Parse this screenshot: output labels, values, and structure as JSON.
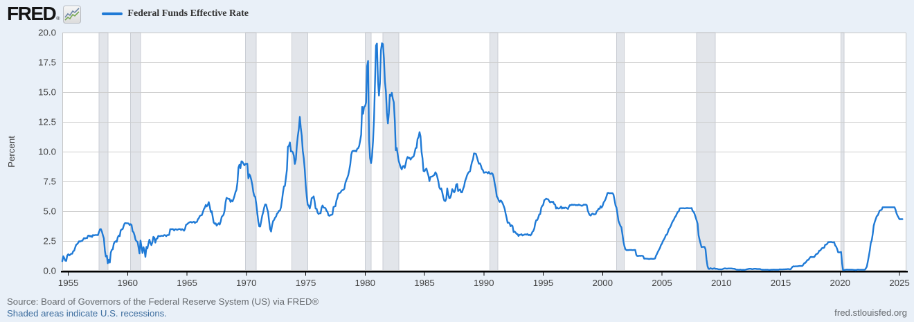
{
  "header": {
    "logo": "FRED",
    "registered": "®"
  },
  "legend": {
    "label": "Federal Funds Effective Rate"
  },
  "footer": {
    "source": "Source: Board of Governors of the Federal Reserve System (US) via FRED®",
    "recessions_note": "Shaded areas indicate U.S. recessions.",
    "site": "fred.stlouisfed.org"
  },
  "chart_data": {
    "type": "line",
    "title": "Federal Funds Effective Rate",
    "series_name": "Federal Funds Effective Rate",
    "xlabel": "",
    "ylabel": "Percent",
    "units": "Percent",
    "grid": true,
    "legend_position": "top-left",
    "xlim": [
      1954.5,
      2025.583
    ],
    "ylim": [
      0,
      20
    ],
    "y_ticks": [
      0,
      2.5,
      5,
      7.5,
      10,
      12.5,
      15,
      17.5,
      20
    ],
    "y_tick_labels": [
      "0.0",
      "2.5",
      "5.0",
      "7.5",
      "10.0",
      "12.5",
      "15.0",
      "17.5",
      "20.0"
    ],
    "x_ticks": [
      1955,
      1960,
      1965,
      1970,
      1975,
      1980,
      1985,
      1990,
      1995,
      2000,
      2005,
      2010,
      2015,
      2020,
      2025
    ],
    "x_tick_labels": [
      "1955",
      "1960",
      "1965",
      "1970",
      "1975",
      "1980",
      "1985",
      "1990",
      "1995",
      "2000",
      "2005",
      "2010",
      "2015",
      "2020",
      "2025"
    ],
    "line_color": "#1f7ad6",
    "colors": {
      "background": "#e9f0f8",
      "plot_background": "#ffffff",
      "grid": "#cdcdcd",
      "plot_border": "#c6c6c6",
      "axis": "#000000",
      "recession_fill": "#e2e5ea",
      "recession_edge": "#c9cdd4"
    },
    "recessions": [
      [
        1957.583,
        1958.333
      ],
      [
        1960.25,
        1961.083
      ],
      [
        1969.917,
        1970.833
      ],
      [
        1973.833,
        1975.167
      ],
      [
        1980.0,
        1980.5
      ],
      [
        1981.5,
        1982.833
      ],
      [
        1990.5,
        1991.167
      ],
      [
        2001.167,
        2001.833
      ],
      [
        2007.917,
        2009.5
      ],
      [
        2020.083,
        2020.333
      ]
    ],
    "frequency": "monthly",
    "x_start": {
      "year": 1954,
      "month": 7
    },
    "values": [
      0.8,
      1.22,
      1.06,
      0.85,
      0.83,
      1.28,
      1.39,
      1.29,
      1.35,
      1.43,
      1.43,
      1.64,
      1.68,
      1.96,
      2.18,
      2.24,
      2.35,
      2.48,
      2.45,
      2.5,
      2.5,
      2.62,
      2.75,
      2.71,
      2.75,
      2.73,
      2.95,
      2.96,
      2.88,
      2.94,
      2.84,
      3.0,
      2.96,
      3.0,
      3.0,
      3.0,
      2.99,
      3.24,
      3.47,
      3.5,
      3.28,
      2.98,
      2.72,
      1.67,
      1.2,
      1.26,
      0.63,
      0.93,
      0.68,
      1.53,
      1.76,
      1.8,
      2.27,
      2.42,
      2.48,
      2.43,
      2.8,
      2.96,
      2.9,
      3.39,
      3.47,
      3.5,
      3.76,
      3.98,
      4.0,
      3.99,
      3.99,
      3.97,
      3.84,
      3.92,
      3.85,
      3.32,
      3.23,
      2.98,
      2.6,
      2.47,
      2.44,
      1.98,
      1.45,
      2.54,
      2.02,
      1.49,
      1.98,
      1.73,
      1.17,
      2.0,
      1.88,
      2.26,
      2.61,
      2.33,
      2.15,
      2.37,
      2.85,
      2.78,
      2.36,
      2.68,
      2.71,
      2.93,
      2.9,
      2.9,
      2.94,
      2.93,
      2.92,
      3.0,
      2.98,
      2.9,
      3.0,
      2.99,
      3.02,
      3.49,
      3.48,
      3.5,
      3.48,
      3.38,
      3.48,
      3.48,
      3.43,
      3.47,
      3.5,
      3.5,
      3.42,
      3.5,
      3.45,
      3.36,
      3.52,
      3.85,
      3.9,
      3.98,
      4.04,
      4.09,
      4.1,
      4.04,
      4.09,
      4.12,
      4.01,
      4.08,
      4.1,
      4.32,
      4.42,
      4.6,
      4.65,
      4.67,
      4.9,
      5.17,
      5.3,
      5.53,
      5.4,
      5.53,
      5.76,
      5.4,
      4.94,
      5.0,
      4.53,
      4.05,
      3.94,
      3.98,
      3.79,
      3.9,
      3.99,
      3.88,
      4.13,
      4.51,
      4.61,
      4.71,
      5.05,
      5.76,
      6.12,
      6.07,
      6.03,
      6.03,
      5.78,
      5.91,
      5.82,
      6.02,
      6.3,
      6.61,
      6.79,
      7.41,
      8.67,
      8.9,
      8.61,
      9.19,
      9.15,
      9.0,
      8.85,
      8.97,
      8.98,
      8.98,
      7.76,
      8.1,
      7.95,
      7.61,
      7.21,
      6.62,
      6.29,
      6.2,
      5.6,
      4.9,
      4.14,
      3.72,
      3.71,
      4.15,
      4.63,
      4.91,
      5.31,
      5.57,
      5.55,
      5.2,
      4.91,
      4.14,
      3.5,
      3.29,
      3.83,
      4.17,
      4.27,
      4.46,
      4.55,
      4.8,
      4.87,
      5.04,
      5.06,
      5.33,
      5.94,
      6.58,
      7.09,
      7.12,
      7.84,
      8.49,
      10.4,
      10.5,
      10.78,
      10.01,
      10.03,
      9.95,
      9.65,
      8.97,
      9.35,
      10.51,
      11.31,
      11.93,
      12.92,
      12.01,
      11.34,
      10.06,
      9.45,
      8.53,
      7.13,
      6.24,
      5.54,
      5.49,
      5.22,
      5.55,
      6.1,
      6.14,
      6.24,
      5.82,
      5.22,
      5.2,
      4.87,
      4.77,
      4.84,
      4.82,
      5.29,
      5.48,
      5.31,
      5.29,
      5.25,
      5.03,
      4.95,
      4.65,
      4.61,
      4.68,
      4.69,
      4.73,
      5.35,
      5.39,
      5.42,
      5.9,
      6.14,
      6.47,
      6.51,
      6.56,
      6.7,
      6.78,
      6.79,
      6.89,
      7.36,
      7.6,
      7.81,
      8.04,
      8.45,
      8.96,
      9.76,
      10.03,
      10.07,
      10.06,
      10.09,
      10.01,
      10.24,
      10.29,
      10.47,
      10.94,
      11.43,
      13.77,
      13.18,
      13.78,
      13.82,
      14.13,
      17.19,
      17.61,
      10.98,
      9.47,
      9.03,
      9.61,
      10.87,
      12.81,
      15.85,
      18.9,
      19.08,
      15.93,
      14.7,
      15.72,
      18.52,
      19.1,
      19.04,
      17.82,
      15.87,
      15.08,
      13.31,
      12.37,
      13.22,
      14.78,
      14.68,
      14.94,
      14.45,
      14.15,
      12.59,
      10.12,
      10.31,
      9.71,
      9.2,
      8.95,
      8.68,
      8.51,
      8.77,
      8.8,
      8.63,
      8.98,
      9.37,
      9.56,
      9.45,
      9.48,
      9.34,
      9.47,
      9.56,
      9.59,
      9.91,
      10.29,
      10.32,
      11.06,
      11.23,
      11.64,
      11.3,
      9.99,
      9.43,
      8.38,
      8.35,
      8.5,
      8.58,
      8.27,
      7.97,
      7.53,
      7.88,
      7.9,
      7.92,
      7.99,
      8.05,
      8.27,
      8.14,
      7.86,
      7.48,
      6.99,
      6.85,
      6.92,
      6.56,
      6.17,
      5.89,
      5.85,
      6.04,
      6.91,
      6.43,
      6.1,
      6.13,
      6.37,
      6.85,
      6.73,
      6.58,
      6.73,
      7.22,
      7.29,
      6.69,
      6.77,
      6.83,
      6.58,
      6.58,
      6.87,
      7.09,
      7.51,
      7.75,
      8.01,
      8.19,
      8.3,
      8.35,
      8.76,
      9.12,
      9.36,
      9.85,
      9.84,
      9.81,
      9.53,
      9.24,
      8.99,
      9.02,
      8.84,
      8.55,
      8.45,
      8.23,
      8.24,
      8.28,
      8.26,
      8.18,
      8.29,
      8.15,
      8.13,
      8.2,
      8.11,
      7.81,
      7.31,
      6.91,
      6.25,
      6.12,
      5.91,
      5.78,
      5.9,
      5.82,
      5.66,
      5.45,
      5.21,
      4.81,
      4.43,
      4.03,
      4.06,
      3.98,
      3.73,
      3.82,
      3.76,
      3.25,
      3.3,
      3.22,
      3.1,
      3.09,
      2.92,
      3.02,
      3.03,
      3.07,
      2.96,
      3.0,
      3.04,
      3.06,
      3.03,
      3.09,
      2.99,
      3.02,
      2.96,
      3.05,
      3.25,
      3.34,
      3.56,
      4.01,
      4.25,
      4.26,
      4.47,
      4.73,
      4.76,
      5.29,
      5.45,
      5.53,
      5.92,
      5.98,
      6.05,
      6.01,
      6.0,
      5.85,
      5.74,
      5.8,
      5.76,
      5.8,
      5.6,
      5.56,
      5.22,
      5.31,
      5.22,
      5.24,
      5.27,
      5.4,
      5.22,
      5.3,
      5.24,
      5.31,
      5.29,
      5.25,
      5.19,
      5.39,
      5.51,
      5.5,
      5.56,
      5.52,
      5.54,
      5.54,
      5.5,
      5.52,
      5.5,
      5.56,
      5.51,
      5.49,
      5.45,
      5.49,
      5.56,
      5.54,
      5.55,
      5.51,
      5.07,
      4.83,
      4.68,
      4.63,
      4.76,
      4.81,
      4.74,
      4.74,
      4.76,
      4.99,
      5.07,
      5.22,
      5.2,
      5.42,
      5.3,
      5.45,
      5.73,
      5.85,
      6.02,
      6.27,
      6.53,
      6.54,
      6.5,
      6.52,
      6.51,
      6.51,
      6.4,
      5.98,
      5.49,
      5.31,
      4.8,
      4.21,
      3.97,
      3.77,
      3.65,
      3.07,
      2.49,
      2.09,
      1.82,
      1.73,
      1.74,
      1.73,
      1.75,
      1.75,
      1.75,
      1.73,
      1.74,
      1.75,
      1.75,
      1.34,
      1.24,
      1.24,
      1.26,
      1.25,
      1.26,
      1.26,
      1.22,
      1.01,
      1.03,
      1.01,
      1.01,
      1.0,
      0.98,
      1.0,
      1.01,
      1.0,
      1.0,
      1.0,
      1.03,
      1.26,
      1.43,
      1.61,
      1.76,
      1.93,
      2.16,
      2.28,
      2.5,
      2.63,
      2.79,
      3.0,
      3.04,
      3.26,
      3.5,
      3.62,
      3.78,
      4.0,
      4.16,
      4.29,
      4.49,
      4.59,
      4.79,
      4.94,
      4.99,
      5.24,
      5.25,
      5.25,
      5.25,
      5.25,
      5.24,
      5.25,
      5.26,
      5.26,
      5.25,
      5.25,
      5.25,
      5.26,
      5.02,
      4.94,
      4.76,
      4.49,
      4.24,
      3.94,
      2.98,
      2.61,
      2.28,
      1.98,
      2.0,
      2.01,
      2.0,
      1.81,
      0.97,
      0.39,
      0.16,
      0.15,
      0.22,
      0.18,
      0.15,
      0.18,
      0.21,
      0.16,
      0.16,
      0.15,
      0.12,
      0.12,
      0.12,
      0.11,
      0.13,
      0.16,
      0.2,
      0.2,
      0.18,
      0.18,
      0.19,
      0.19,
      0.19,
      0.19,
      0.18,
      0.17,
      0.16,
      0.14,
      0.1,
      0.09,
      0.09,
      0.07,
      0.1,
      0.08,
      0.07,
      0.08,
      0.07,
      0.08,
      0.1,
      0.13,
      0.14,
      0.16,
      0.16,
      0.16,
      0.13,
      0.14,
      0.16,
      0.16,
      0.16,
      0.14,
      0.15,
      0.14,
      0.15,
      0.11,
      0.09,
      0.09,
      0.08,
      0.08,
      0.09,
      0.08,
      0.09,
      0.07,
      0.07,
      0.08,
      0.09,
      0.09,
      0.1,
      0.09,
      0.09,
      0.09,
      0.09,
      0.09,
      0.12,
      0.11,
      0.11,
      0.11,
      0.12,
      0.12,
      0.13,
      0.13,
      0.14,
      0.14,
      0.12,
      0.12,
      0.24,
      0.34,
      0.38,
      0.36,
      0.37,
      0.37,
      0.38,
      0.39,
      0.4,
      0.4,
      0.4,
      0.41,
      0.54,
      0.65,
      0.66,
      0.79,
      0.9,
      0.91,
      1.04,
      1.15,
      1.16,
      1.15,
      1.15,
      1.16,
      1.3,
      1.41,
      1.42,
      1.51,
      1.69,
      1.7,
      1.82,
      1.91,
      1.91,
      1.95,
      2.19,
      2.2,
      2.27,
      2.4,
      2.4,
      2.41,
      2.42,
      2.39,
      2.38,
      2.4,
      2.13,
      2.04,
      1.83,
      1.55,
      1.55,
      1.55,
      1.58,
      0.65,
      0.05,
      0.05,
      0.08,
      0.09,
      0.1,
      0.09,
      0.09,
      0.09,
      0.09,
      0.09,
      0.08,
      0.07,
      0.07,
      0.06,
      0.08,
      0.1,
      0.09,
      0.08,
      0.08,
      0.08,
      0.08,
      0.08,
      0.08,
      0.2,
      0.33,
      0.77,
      1.21,
      1.68,
      2.33,
      2.56,
      3.08,
      3.78,
      4.1,
      4.33,
      4.57,
      4.65,
      4.83,
      5.06,
      5.08,
      5.12,
      5.33,
      5.33,
      5.33,
      5.33,
      5.33,
      5.33,
      5.33,
      5.33,
      5.33,
      5.33,
      5.33,
      5.33,
      5.33,
      5.13,
      4.83,
      4.64,
      4.48,
      4.33,
      4.33,
      4.33,
      4.33
    ]
  }
}
